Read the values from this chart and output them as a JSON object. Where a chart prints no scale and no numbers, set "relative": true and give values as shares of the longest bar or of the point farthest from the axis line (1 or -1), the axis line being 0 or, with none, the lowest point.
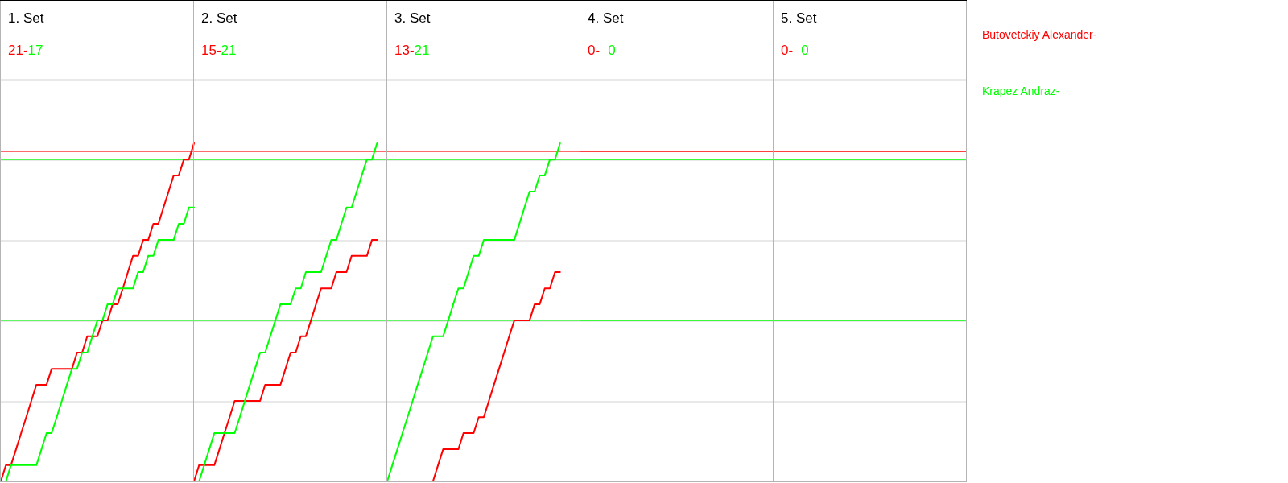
{
  "chart_data": [
    {
      "type": "line",
      "title": "1. Set",
      "annotations": [
        "21-",
        "17"
      ],
      "relative": true,
      "grid": true,
      "categories": [
        null,
        null,
        null,
        null,
        null,
        null,
        null,
        null,
        null,
        null,
        null,
        null,
        null,
        null,
        null,
        null,
        null,
        null,
        null,
        null,
        null,
        null,
        null,
        null,
        null,
        null,
        null,
        null,
        null,
        null,
        null,
        null,
        null,
        null,
        null,
        null,
        null,
        null,
        null
      ],
      "series": [
        {
          "name": "Butovetckiy Alexander-",
          "color": "#ff0000",
          "values": [
            0,
            0.048,
            0.048,
            0.095,
            0.143,
            0.19,
            0.238,
            0.286,
            0.286,
            0.286,
            0.333,
            0.333,
            0.333,
            0.333,
            0.333,
            0.381,
            0.381,
            0.429,
            0.429,
            0.429,
            0.476,
            0.476,
            0.524,
            0.524,
            0.571,
            0.619,
            0.667,
            0.667,
            0.714,
            0.714,
            0.762,
            0.762,
            0.81,
            0.857,
            0.905,
            0.905,
            0.952,
            0.952,
            1
          ]
        },
        {
          "name": "Krapez Andraz-",
          "color": "#00ff00",
          "values": [
            0,
            0,
            0.048,
            0.048,
            0.048,
            0.048,
            0.048,
            0.048,
            0.095,
            0.143,
            0.143,
            0.19,
            0.238,
            0.286,
            0.333,
            0.333,
            0.381,
            0.381,
            0.429,
            0.476,
            0.476,
            0.524,
            0.524,
            0.571,
            0.571,
            0.571,
            0.571,
            0.619,
            0.619,
            0.667,
            0.667,
            0.714,
            0.714,
            0.714,
            0.714,
            0.762,
            0.762,
            0.81,
            0.81
          ]
        }
      ],
      "ref_lines": [
        {
          "axis": "y",
          "value": 0.976,
          "color": "#ff0000"
        },
        {
          "axis": "y",
          "value": 0.952,
          "color": "#00ff00"
        },
        {
          "axis": "y",
          "value": 0.476,
          "color": "#00ff00"
        }
      ]
    },
    {
      "type": "line",
      "title": "2. Set",
      "annotations": [
        "15-",
        "21"
      ],
      "relative": true,
      "grid": true,
      "categories": [
        null,
        null,
        null,
        null,
        null,
        null,
        null,
        null,
        null,
        null,
        null,
        null,
        null,
        null,
        null,
        null,
        null,
        null,
        null,
        null,
        null,
        null,
        null,
        null,
        null,
        null,
        null,
        null,
        null,
        null,
        null,
        null,
        null,
        null,
        null,
        null,
        null
      ],
      "series": [
        {
          "color": "#ff0000",
          "values": [
            0,
            0.048,
            0.048,
            0.048,
            0.048,
            0.095,
            0.143,
            0.19,
            0.238,
            0.238,
            0.238,
            0.238,
            0.238,
            0.238,
            0.286,
            0.286,
            0.286,
            0.286,
            0.333,
            0.381,
            0.381,
            0.429,
            0.429,
            0.476,
            0.524,
            0.571,
            0.571,
            0.571,
            0.619,
            0.619,
            0.619,
            0.667,
            0.667,
            0.667,
            0.667,
            0.714,
            0.714
          ]
        },
        {
          "color": "#00ff00",
          "values": [
            0,
            0,
            0.048,
            0.095,
            0.143,
            0.143,
            0.143,
            0.143,
            0.143,
            0.19,
            0.238,
            0.286,
            0.333,
            0.381,
            0.381,
            0.429,
            0.476,
            0.524,
            0.524,
            0.524,
            0.571,
            0.571,
            0.619,
            0.619,
            0.619,
            0.619,
            0.667,
            0.714,
            0.714,
            0.762,
            0.81,
            0.81,
            0.857,
            0.905,
            0.952,
            0.952,
            1
          ]
        }
      ],
      "ref_lines": [
        {
          "axis": "y",
          "value": 0.976,
          "color": "#ff0000"
        },
        {
          "axis": "y",
          "value": 0.952,
          "color": "#00ff00"
        },
        {
          "axis": "y",
          "value": 0.476,
          "color": "#00ff00"
        }
      ]
    },
    {
      "type": "line",
      "title": "3. Set",
      "annotations": [
        "13-",
        "21"
      ],
      "relative": true,
      "grid": true,
      "categories": [
        null,
        null,
        null,
        null,
        null,
        null,
        null,
        null,
        null,
        null,
        null,
        null,
        null,
        null,
        null,
        null,
        null,
        null,
        null,
        null,
        null,
        null,
        null,
        null,
        null,
        null,
        null,
        null,
        null,
        null,
        null,
        null,
        null,
        null,
        null
      ],
      "series": [
        {
          "color": "#ff0000",
          "values": [
            0,
            0,
            0,
            0,
            0,
            0,
            0,
            0,
            0,
            0,
            0.048,
            0.095,
            0.095,
            0.095,
            0.095,
            0.143,
            0.143,
            0.143,
            0.19,
            0.19,
            0.238,
            0.286,
            0.333,
            0.381,
            0.429,
            0.476,
            0.476,
            0.476,
            0.476,
            0.524,
            0.524,
            0.571,
            0.571,
            0.619,
            0.619
          ]
        },
        {
          "color": "#00ff00",
          "values": [
            0,
            0.048,
            0.095,
            0.143,
            0.19,
            0.238,
            0.286,
            0.333,
            0.381,
            0.429,
            0.429,
            0.429,
            0.476,
            0.524,
            0.571,
            0.571,
            0.619,
            0.667,
            0.667,
            0.714,
            0.714,
            0.714,
            0.714,
            0.714,
            0.714,
            0.714,
            0.762,
            0.81,
            0.857,
            0.857,
            0.905,
            0.905,
            0.952,
            0.952,
            1
          ]
        }
      ],
      "ref_lines": [
        {
          "axis": "y",
          "value": 0.976,
          "color": "#ff0000"
        },
        {
          "axis": "y",
          "value": 0.952,
          "color": "#00ff00"
        },
        {
          "axis": "y",
          "value": 0.476,
          "color": "#00ff00"
        }
      ]
    },
    {
      "type": "other",
      "title": "4. Set",
      "annotations": [
        "0-",
        "0"
      ],
      "colors": [
        "#ff0000",
        "#00ff00"
      ]
    },
    {
      "type": "other",
      "title": "5. Set",
      "annotations": [
        "0-",
        "0"
      ],
      "colors": [
        "#ff0000",
        "#00ff00"
      ]
    }
  ]
}
